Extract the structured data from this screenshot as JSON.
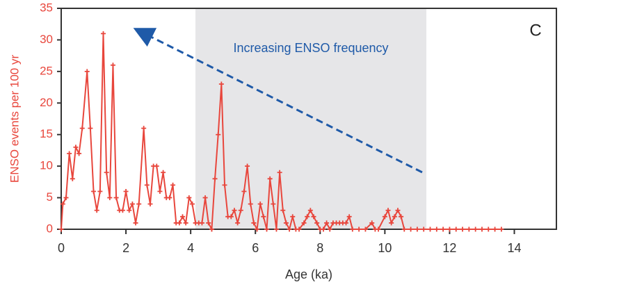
{
  "chart_data": {
    "type": "line",
    "y_label": "ENSO events per 100 yr",
    "x_label": "Age (ka)",
    "annotation": "Increasing ENSO frequency",
    "panel_label": "C",
    "color": "#e8463c",
    "x": [
      0.0,
      0.05,
      0.15,
      0.25,
      0.35,
      0.45,
      0.55,
      0.65,
      0.8,
      0.9,
      1.0,
      1.1,
      1.2,
      1.3,
      1.4,
      1.5,
      1.6,
      1.7,
      1.8,
      1.9,
      2.0,
      2.1,
      2.2,
      2.3,
      2.4,
      2.55,
      2.65,
      2.75,
      2.85,
      2.95,
      3.05,
      3.15,
      3.25,
      3.35,
      3.45,
      3.55,
      3.65,
      3.75,
      3.85,
      3.95,
      4.05,
      4.15,
      4.25,
      4.35,
      4.45,
      4.55,
      4.65,
      4.75,
      4.85,
      4.95,
      5.05,
      5.15,
      5.25,
      5.35,
      5.45,
      5.55,
      5.65,
      5.75,
      5.85,
      5.95,
      6.05,
      6.15,
      6.25,
      6.35,
      6.45,
      6.55,
      6.65,
      6.75,
      6.85,
      6.95,
      7.05,
      7.15,
      7.25,
      7.35,
      7.5,
      7.6,
      7.7,
      7.8,
      7.9,
      8.0,
      8.1,
      8.2,
      8.3,
      8.4,
      8.5,
      8.6,
      8.7,
      8.8,
      8.9,
      9.0,
      9.2,
      9.4,
      9.6,
      9.7,
      9.8,
      10.0,
      10.1,
      10.2,
      10.3,
      10.4,
      10.5,
      10.6,
      10.8,
      11.0,
      11.2,
      11.4,
      11.6,
      11.8,
      12.0,
      12.2,
      12.4,
      12.6,
      12.8,
      13.0,
      13.2,
      13.4,
      13.6
    ],
    "values": [
      0,
      4,
      5,
      12,
      8,
      13,
      12,
      16,
      25,
      16,
      6,
      3,
      6,
      31,
      9,
      5,
      26,
      5,
      3,
      3,
      6,
      3,
      4,
      1,
      4,
      16,
      7,
      4,
      10,
      10,
      6,
      9,
      5,
      5,
      7,
      1,
      1,
      2,
      1,
      5,
      4,
      1,
      1,
      1,
      5,
      1,
      0,
      8,
      15,
      23,
      7,
      2,
      2,
      3,
      1,
      3,
      6,
      10,
      4,
      1,
      0,
      4,
      2,
      0,
      8,
      4,
      0,
      9,
      3,
      1,
      0,
      2,
      0,
      0,
      1,
      2,
      3,
      2,
      1,
      0,
      0,
      1,
      0,
      1,
      1,
      1,
      1,
      1,
      2,
      0,
      0,
      0,
      1,
      0,
      0,
      2,
      3,
      1,
      2,
      3,
      2,
      0,
      0,
      0,
      0,
      0,
      0,
      0,
      0,
      0,
      0,
      0,
      0,
      0,
      0,
      0,
      0
    ],
    "xlim": [
      0,
      15.3
    ],
    "ylim": [
      0,
      35
    ],
    "xticks": [
      0,
      2,
      4,
      6,
      8,
      10,
      12,
      14
    ],
    "yticks": [
      0,
      5,
      10,
      15,
      20,
      25,
      30,
      35
    ]
  }
}
